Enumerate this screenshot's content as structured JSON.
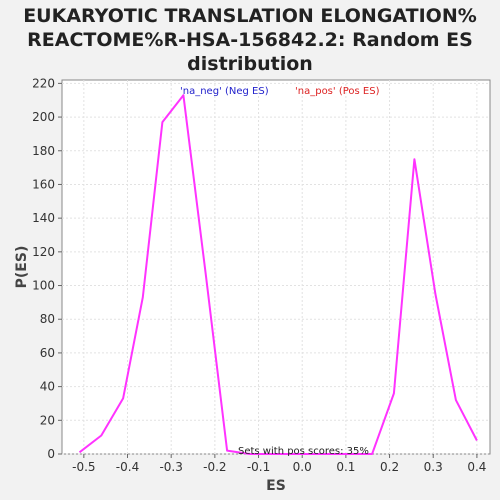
{
  "chart_data": {
    "type": "line",
    "title_lines": [
      "EUKARYOTIC TRANSLATION ELONGATION%",
      "REACTOME%R-HSA-156842.2: Random ES",
      "distribution"
    ],
    "xlabel": "ES",
    "ylabel": "P(ES)",
    "xlim": [
      -0.55,
      0.43
    ],
    "ylim": [
      0,
      222
    ],
    "xticks": [
      -0.5,
      -0.4,
      -0.3,
      -0.2,
      -0.1,
      0.0,
      0.1,
      0.2,
      0.3,
      0.4
    ],
    "xtick_labels": [
      "-0.5",
      "-0.4",
      "-0.3",
      "-0.2",
      "-0.1",
      "0.0",
      "0.1",
      "0.2",
      "0.3",
      "0.4"
    ],
    "yticks": [
      0,
      20,
      40,
      60,
      80,
      100,
      120,
      140,
      160,
      180,
      200,
      220
    ],
    "ytick_labels": [
      "0",
      "20",
      "40",
      "60",
      "80",
      "100",
      "120",
      "140",
      "160",
      "180",
      "200",
      "220"
    ],
    "grid": true,
    "series": [
      {
        "color": "#ff33ff",
        "x": [
          -0.51,
          -0.46,
          -0.41,
          -0.365,
          -0.32,
          -0.272,
          -0.22,
          -0.172,
          -0.12,
          -0.07,
          -0.02,
          0.03,
          0.08,
          0.115,
          0.16,
          0.21,
          0.257,
          0.305,
          0.352,
          0.4
        ],
        "y": [
          1,
          11,
          33,
          93,
          197,
          213,
          105,
          2,
          0,
          0,
          0,
          0,
          0,
          0,
          0,
          36,
          175,
          95,
          32,
          8
        ]
      }
    ],
    "legend": {
      "placement": "top",
      "entries": [
        {
          "label": "'na_neg' (Neg ES)",
          "color": "#2222cc"
        },
        {
          "label": "'na_pos' (Pos ES)",
          "color": "#dd2222"
        }
      ]
    },
    "annotation": "Sets with pos scores: 35%"
  }
}
